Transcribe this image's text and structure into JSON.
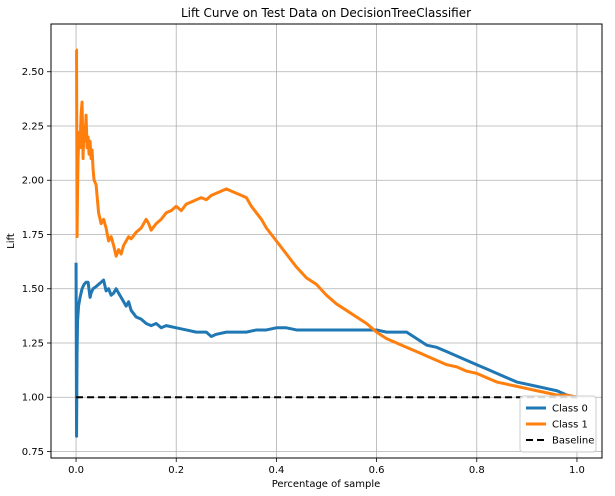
{
  "chart_data": {
    "type": "line",
    "title": "Lift Curve on Test Data on DecisionTreeClassifier",
    "xlabel": "Percentage of sample",
    "ylabel": "Lift",
    "xlim": [
      -0.05,
      1.05
    ],
    "ylim": [
      0.72,
      2.72
    ],
    "xticks": [
      0.0,
      0.2,
      0.4,
      0.6,
      0.8,
      1.0
    ],
    "xtick_labels": [
      "0.0",
      "0.2",
      "0.4",
      "0.6",
      "0.8",
      "1.0"
    ],
    "yticks": [
      0.75,
      1.0,
      1.25,
      1.5,
      1.75,
      2.0,
      2.25,
      2.5
    ],
    "ytick_labels": [
      "0.75",
      "1.00",
      "1.25",
      "1.50",
      "1.75",
      "2.00",
      "2.25",
      "2.50"
    ],
    "grid": true,
    "legend_position": "lower-right",
    "series": [
      {
        "name": "Class 0",
        "color": "#1f77b4",
        "style": "solid",
        "x": [
          0.0,
          0.001,
          0.002,
          0.003,
          0.005,
          0.008,
          0.012,
          0.016,
          0.02,
          0.024,
          0.028,
          0.03,
          0.034,
          0.04,
          0.05,
          0.055,
          0.06,
          0.065,
          0.07,
          0.075,
          0.08,
          0.085,
          0.09,
          0.1,
          0.105,
          0.11,
          0.12,
          0.13,
          0.14,
          0.15,
          0.16,
          0.17,
          0.18,
          0.2,
          0.22,
          0.24,
          0.26,
          0.27,
          0.28,
          0.3,
          0.32,
          0.34,
          0.36,
          0.38,
          0.4,
          0.42,
          0.44,
          0.46,
          0.48,
          0.5,
          0.52,
          0.54,
          0.56,
          0.58,
          0.6,
          0.62,
          0.64,
          0.66,
          0.68,
          0.7,
          0.72,
          0.74,
          0.76,
          0.78,
          0.8,
          0.82,
          0.84,
          0.86,
          0.88,
          0.9,
          0.92,
          0.94,
          0.96,
          0.98,
          1.0
        ],
        "y": [
          1.62,
          0.82,
          1.2,
          1.35,
          1.42,
          1.46,
          1.5,
          1.52,
          1.53,
          1.53,
          1.46,
          1.48,
          1.5,
          1.51,
          1.53,
          1.54,
          1.49,
          1.5,
          1.47,
          1.48,
          1.5,
          1.48,
          1.46,
          1.42,
          1.44,
          1.4,
          1.37,
          1.36,
          1.34,
          1.33,
          1.34,
          1.32,
          1.33,
          1.32,
          1.31,
          1.3,
          1.3,
          1.28,
          1.29,
          1.3,
          1.3,
          1.3,
          1.31,
          1.31,
          1.32,
          1.32,
          1.31,
          1.31,
          1.31,
          1.31,
          1.31,
          1.31,
          1.31,
          1.31,
          1.31,
          1.3,
          1.3,
          1.3,
          1.27,
          1.24,
          1.23,
          1.21,
          1.19,
          1.17,
          1.15,
          1.13,
          1.11,
          1.09,
          1.07,
          1.06,
          1.05,
          1.04,
          1.03,
          1.01,
          1.0
        ]
      },
      {
        "name": "Class 1",
        "color": "#ff7f0e",
        "style": "solid",
        "x": [
          0.0,
          0.001,
          0.002,
          0.003,
          0.004,
          0.006,
          0.008,
          0.01,
          0.012,
          0.014,
          0.016,
          0.018,
          0.02,
          0.022,
          0.024,
          0.026,
          0.028,
          0.03,
          0.032,
          0.034,
          0.036,
          0.04,
          0.045,
          0.05,
          0.055,
          0.06,
          0.065,
          0.07,
          0.075,
          0.08,
          0.085,
          0.09,
          0.095,
          0.1,
          0.105,
          0.11,
          0.12,
          0.13,
          0.14,
          0.145,
          0.15,
          0.16,
          0.17,
          0.18,
          0.19,
          0.2,
          0.21,
          0.22,
          0.23,
          0.24,
          0.25,
          0.26,
          0.27,
          0.28,
          0.29,
          0.3,
          0.31,
          0.32,
          0.33,
          0.34,
          0.35,
          0.36,
          0.37,
          0.38,
          0.4,
          0.42,
          0.44,
          0.46,
          0.48,
          0.5,
          0.52,
          0.54,
          0.56,
          0.58,
          0.6,
          0.62,
          0.64,
          0.66,
          0.68,
          0.7,
          0.72,
          0.74,
          0.76,
          0.78,
          0.8,
          0.82,
          0.84,
          0.86,
          0.88,
          0.9,
          0.92,
          0.94,
          0.96,
          0.98,
          1.0
        ],
        "y": [
          2.6,
          2.6,
          1.74,
          1.95,
          2.1,
          2.22,
          2.15,
          2.3,
          2.36,
          2.1,
          2.25,
          2.18,
          2.3,
          2.15,
          2.2,
          2.12,
          2.18,
          2.1,
          2.14,
          2.05,
          2.0,
          1.98,
          1.85,
          1.8,
          1.82,
          1.78,
          1.72,
          1.74,
          1.7,
          1.65,
          1.68,
          1.66,
          1.7,
          1.72,
          1.74,
          1.73,
          1.76,
          1.78,
          1.82,
          1.8,
          1.77,
          1.8,
          1.82,
          1.85,
          1.86,
          1.88,
          1.86,
          1.89,
          1.9,
          1.91,
          1.92,
          1.91,
          1.93,
          1.94,
          1.95,
          1.96,
          1.95,
          1.94,
          1.93,
          1.92,
          1.88,
          1.85,
          1.82,
          1.78,
          1.72,
          1.66,
          1.6,
          1.55,
          1.52,
          1.47,
          1.43,
          1.4,
          1.37,
          1.34,
          1.3,
          1.27,
          1.25,
          1.23,
          1.21,
          1.19,
          1.17,
          1.15,
          1.14,
          1.12,
          1.11,
          1.09,
          1.07,
          1.06,
          1.05,
          1.04,
          1.03,
          1.02,
          1.01,
          1.01,
          1.0
        ]
      },
      {
        "name": "Baseline",
        "color": "#000000",
        "style": "dashed",
        "x": [
          0.0,
          1.0
        ],
        "y": [
          1.0,
          1.0
        ]
      }
    ]
  }
}
